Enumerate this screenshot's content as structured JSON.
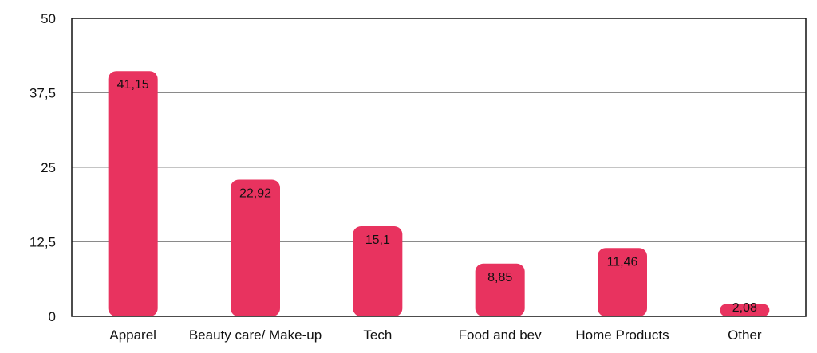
{
  "chart_data": {
    "type": "bar",
    "title": "",
    "xlabel": "",
    "ylabel": "",
    "categories": [
      "Apparel",
      "Beauty care/ Make-up",
      "Tech",
      "Food and bev",
      "Home Products",
      "Other"
    ],
    "values": [
      41.15,
      22.92,
      15.1,
      8.85,
      11.46,
      2.08
    ],
    "value_labels": [
      "41,15",
      "22,92",
      "15,1",
      "8,85",
      "11,46",
      "2,08"
    ],
    "ylim": [
      0,
      50
    ],
    "yticks": [
      0,
      12.5,
      25,
      37.5,
      50
    ],
    "ytick_labels": [
      "0",
      "12,5",
      "25",
      "37,5",
      "50"
    ],
    "grid": true,
    "legend": "none",
    "bar_color": "#e8335f",
    "grid_color": "#8a8a8a",
    "frame_color": "#111111"
  }
}
